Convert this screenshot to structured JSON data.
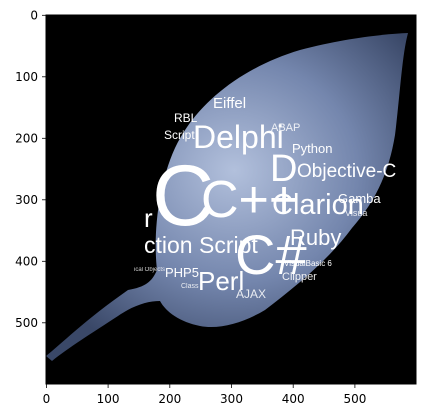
{
  "figure": {
    "x_ticks": [
      "0",
      "100",
      "200",
      "300",
      "400",
      "500"
    ],
    "y_ticks": [
      "0",
      "100",
      "200",
      "300",
      "400",
      "500"
    ],
    "x_range": [
      0,
      600
    ],
    "y_range": [
      600,
      0
    ],
    "image_description_colors": {
      "background": "#000000",
      "leaf_light": "#a9b8d6",
      "leaf_mid": "#6d7fa6",
      "leaf_dark": "#3b4968",
      "text": "#ffffff"
    }
  },
  "word_cloud": {
    "w_eiffel": "Eiffel",
    "w_abap": "ABAP",
    "w_bl": "RBL",
    "w_script_top": "Script",
    "w_delphi": "Delphi",
    "w_python": "Python",
    "w_d": "D",
    "w_objc": "Objective-C",
    "w_cpp": "C++",
    "w_c": "C",
    "w_clarion": "Clarion",
    "w_gamba": "Gamba",
    "w_visua": "Visua",
    "w_r": "r",
    "w_csharp": "C#",
    "w_ruby": "Ruby",
    "w_action": "ction Script",
    "w_php": "PHP5",
    "w_perl": "Perl",
    "w_vb": "VisualBasic 6",
    "w_clipper": "Clipper",
    "w_class": "Class",
    "w_objects": "ical Objects",
    "w_ajax": "AJAX"
  }
}
